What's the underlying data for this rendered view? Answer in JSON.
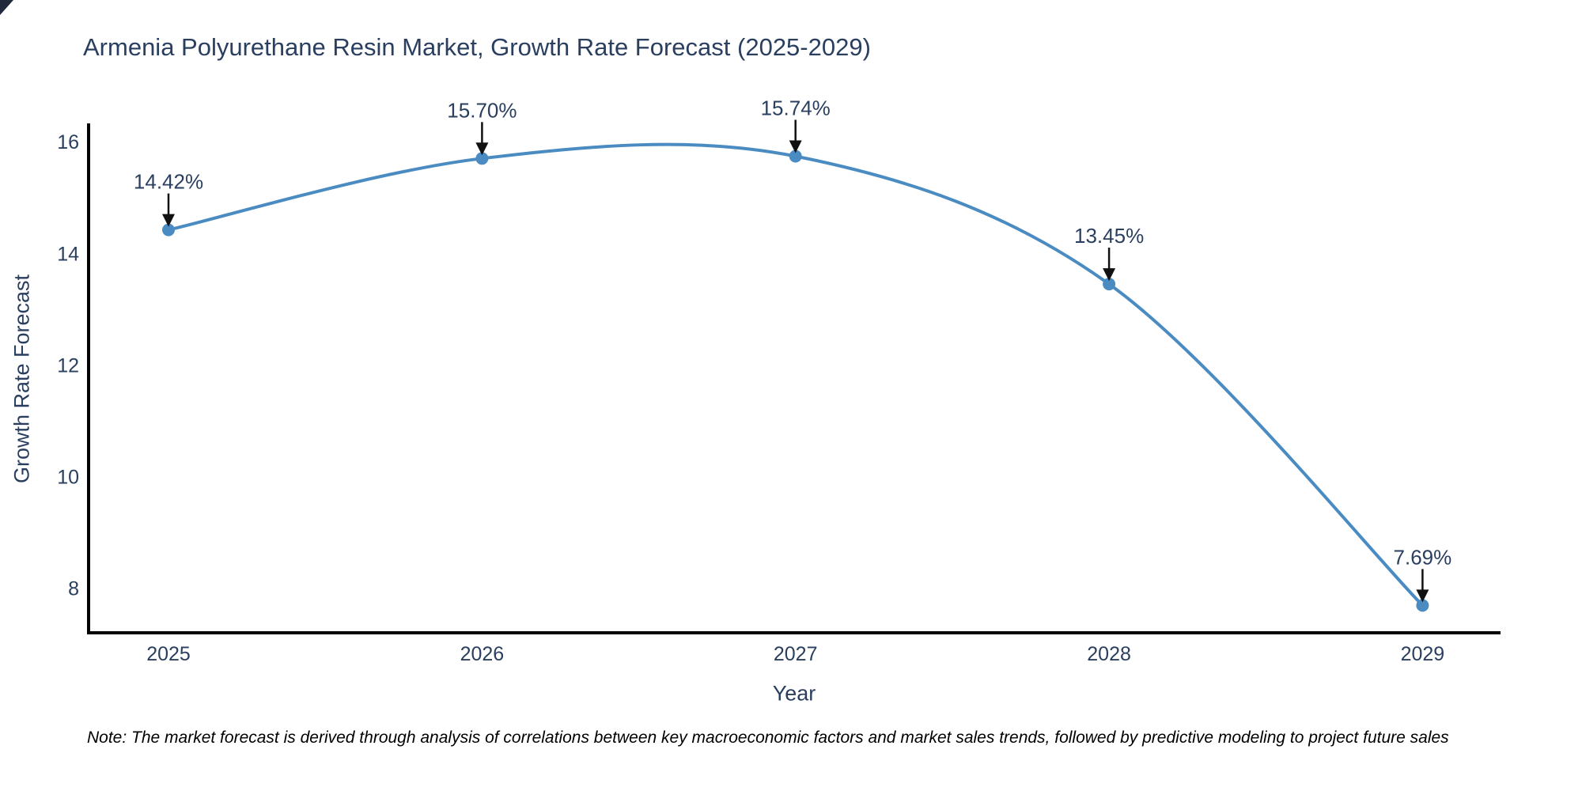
{
  "footnote": "Note: The market forecast is derived through analysis of correlations between key macroeconomic factors and market sales trends, followed by predictive modeling to project future sales",
  "colors": {
    "text": "#2a3f5f",
    "line": "#4a8bc2",
    "marker": "#4a8bc2",
    "axis": "#000000",
    "arrow": "#111111",
    "footnote_text": "#000000",
    "background": "#ffffff",
    "corner_artifact": "#202a3c"
  },
  "chart_data": {
    "type": "line",
    "title": "Armenia Polyurethane Resin Market, Growth Rate Forecast (2025-2029)",
    "xlabel": "Year",
    "ylabel": "Growth Rate Forecast",
    "x": [
      "2025",
      "2026",
      "2027",
      "2028",
      "2029"
    ],
    "values": [
      14.42,
      15.7,
      15.74,
      13.45,
      7.69
    ],
    "point_labels": [
      "14.42%",
      "15.70%",
      "15.74%",
      "13.45%",
      "7.69%"
    ],
    "yticks": [
      8,
      10,
      12,
      14,
      16
    ],
    "ylim": [
      7.2,
      16.3
    ],
    "line_shape": "spline",
    "markers": true,
    "grid": false,
    "legend": "none",
    "annotation_style": "down-arrow-to-point"
  }
}
